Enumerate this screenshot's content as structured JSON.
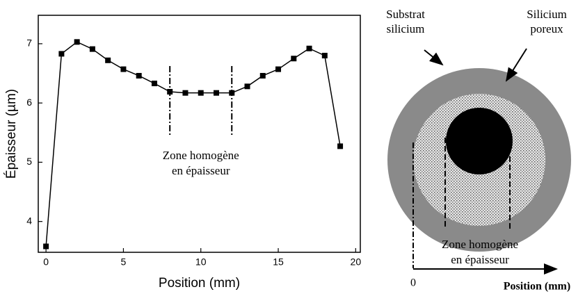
{
  "chart_data": {
    "type": "line",
    "xlabel": "Position (mm)",
    "ylabel": "Épaisseur (µm)",
    "x": [
      0,
      1,
      2,
      3,
      4,
      5,
      6,
      7,
      8,
      9,
      10,
      11,
      12,
      13,
      14,
      15,
      16,
      17,
      18,
      19
    ],
    "series": [
      {
        "color": "#000000",
        "values": [
          3.58,
          6.83,
          7.03,
          6.91,
          6.72,
          6.57,
          6.46,
          6.33,
          6.19,
          6.17,
          6.17,
          6.17,
          6.17,
          6.28,
          6.46,
          6.57,
          6.75,
          6.92,
          6.8,
          5.27
        ]
      }
    ],
    "xlim": [
      -0.5,
      20.3
    ],
    "ylim": [
      3.48,
      7.48
    ],
    "xticks": [
      0,
      5,
      10,
      15,
      20
    ],
    "yticks": [
      4,
      5,
      6,
      7
    ],
    "vlines": [
      8,
      12
    ],
    "annotation": [
      "Zone homogène",
      "en épaisseur"
    ]
  },
  "diagram": {
    "substrate_label": [
      "Substrat",
      "silicium"
    ],
    "porous_label": [
      "Silicium",
      "poreux"
    ],
    "zone_label": [
      "Zone homogène",
      "en épaisseur"
    ],
    "origin_label": "0",
    "axis_label": "Position (mm)"
  }
}
